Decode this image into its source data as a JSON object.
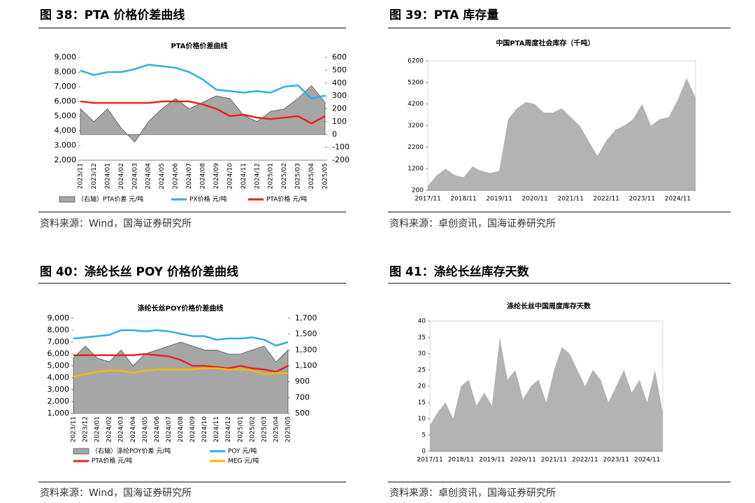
{
  "figures": [
    {
      "heading": "图 38：PTA 价格价差曲线",
      "source": "资料来源：Wind，国海证券研究所"
    },
    {
      "heading": "图 39：PTA 库存量",
      "source": "资料来源：卓创资讯，国海证券研究所"
    },
    {
      "heading": "图 40：涤纶长丝 POY 价格价差曲线",
      "source": "资料来源：Wind，国海证券研究所"
    },
    {
      "heading": "图 41：涤纶长丝库存天数",
      "source": "资料来源：卓创资讯，国海证券研究所"
    }
  ],
  "chart_data": [
    {
      "type": "combo",
      "title": "PTA价格价差曲线",
      "categories": [
        "2023/11",
        "2023/12",
        "2024/01",
        "2024/02",
        "2024/03",
        "2024/04",
        "2024/05",
        "2024/06",
        "2024/07",
        "2024/08",
        "2024/09",
        "2024/10",
        "2024/11",
        "2024/12",
        "2025/01",
        "2025/02",
        "2025/03",
        "2025/04",
        "2025/05"
      ],
      "series": [
        {
          "name": "（右轴）PTA价差  元/吨",
          "type": "area",
          "axis": "y2",
          "color": "#a6a6a6",
          "values": [
            200,
            100,
            200,
            50,
            -60,
            100,
            200,
            280,
            200,
            250,
            300,
            280,
            150,
            100,
            180,
            200,
            280,
            380,
            250
          ]
        },
        {
          "name": "PX价格  元/吨",
          "type": "line",
          "color": "#2eaee6",
          "values": [
            8100,
            7800,
            8000,
            8000,
            8200,
            8500,
            8400,
            8300,
            8000,
            7500,
            6800,
            6700,
            6600,
            6700,
            6600,
            7000,
            7100,
            6200,
            6400
          ]
        },
        {
          "name": "PTA价格  元/吨",
          "type": "line",
          "color": "#e8231f",
          "values": [
            6000,
            5900,
            5900,
            5900,
            5900,
            5900,
            6000,
            6000,
            6000,
            5800,
            5500,
            5000,
            5100,
            4900,
            4800,
            4900,
            5000,
            4500,
            5000
          ]
        }
      ],
      "ylim": [
        2000,
        9000
      ],
      "yticks": [
        {
          "value": 2000,
          "label": "2,000"
        },
        {
          "value": 3000,
          "label": "3,000"
        },
        {
          "value": 4000,
          "label": "4,000"
        },
        {
          "value": 5000,
          "label": "5,000"
        },
        {
          "value": 6000,
          "label": "6,000"
        },
        {
          "value": 7000,
          "label": "7,000"
        },
        {
          "value": 8000,
          "label": "8,000"
        },
        {
          "value": 9000,
          "label": "9,000"
        }
      ],
      "y2lim": [
        -200,
        600
      ],
      "y2ticks": [
        -200,
        -100,
        0,
        100,
        200,
        300,
        400,
        500,
        600
      ]
    },
    {
      "type": "area",
      "title": "中国PTA周度社会库存（千吨）",
      "categories": [
        "2017/11",
        null,
        null,
        null,
        "2018/11",
        null,
        null,
        null,
        "2019/11",
        null,
        null,
        null,
        "2020/11",
        null,
        null,
        null,
        "2021/11",
        null,
        null,
        null,
        "2022/11",
        null,
        null,
        null,
        "2023/11",
        null,
        null,
        null,
        "2024/11",
        null,
        null
      ],
      "series": [
        {
          "name": "PTA社会库存",
          "color": "#b3b3b3",
          "values": [
            400,
            900,
            1200,
            900,
            800,
            1300,
            1100,
            1000,
            1100,
            3500,
            4000,
            4300,
            4200,
            3800,
            3800,
            4000,
            3600,
            3200,
            2500,
            1800,
            2500,
            3000,
            3200,
            3500,
            4200,
            3200,
            3500,
            3600,
            4400,
            5400,
            4500
          ]
        }
      ],
      "ylim": [
        200,
        6200
      ],
      "yticks": [
        200,
        1200,
        2200,
        3200,
        4200,
        5200,
        6200
      ]
    },
    {
      "type": "combo",
      "title": "涤纶长丝POY价格价差曲线",
      "categories": [
        "2023/11",
        "2023/12",
        "2024/01",
        "2024/02",
        "2024/03",
        "2024/04",
        "2024/05",
        "2024/06",
        "2024/07",
        "2024/08",
        "2024/09",
        "2024/10",
        "2024/11",
        "2024/12",
        "2025/01",
        "2025/02",
        "2025/03",
        "2025/04",
        "2025/05"
      ],
      "series": [
        {
          "name": "（右轴）涤纶POY价差  元/吨",
          "type": "area",
          "axis": "y2",
          "color": "#a6a6a6",
          "values": [
            1200,
            1350,
            1200,
            1150,
            1300,
            1100,
            1250,
            1300,
            1350,
            1400,
            1350,
            1300,
            1300,
            1250,
            1250,
            1300,
            1350,
            1150,
            1300
          ]
        },
        {
          "name": "POY  元/吨",
          "type": "line",
          "color": "#2eaee6",
          "values": [
            7300,
            7400,
            7500,
            7600,
            8000,
            8000,
            7900,
            8000,
            7900,
            7700,
            7500,
            7500,
            7200,
            7300,
            7300,
            7400,
            7200,
            6700,
            7000
          ]
        },
        {
          "name": "PTA价格  元/吨",
          "type": "line",
          "color": "#e8231f",
          "values": [
            5900,
            5900,
            5900,
            5900,
            5900,
            5900,
            6000,
            5900,
            5800,
            5500,
            5000,
            5000,
            4900,
            4800,
            5000,
            4800,
            4700,
            4500,
            5000
          ]
        },
        {
          "name": "MEG  元/吨",
          "type": "line",
          "color": "#f5b800",
          "values": [
            4100,
            4300,
            4500,
            4600,
            4600,
            4400,
            4600,
            4700,
            4700,
            4700,
            4700,
            4800,
            4800,
            4700,
            4700,
            4600,
            4300,
            4400,
            4400
          ]
        }
      ],
      "ylim": [
        1000,
        9000
      ],
      "yticks": [
        {
          "value": 1000,
          "label": "1,000"
        },
        {
          "value": 2000,
          "label": "2,000"
        },
        {
          "value": 3000,
          "label": "3,000"
        },
        {
          "value": 4000,
          "label": "4,000"
        },
        {
          "value": 5000,
          "label": "5,000"
        },
        {
          "value": 6000,
          "label": "6,000"
        },
        {
          "value": 7000,
          "label": "7,000"
        },
        {
          "value": 8000,
          "label": "8,000"
        },
        {
          "value": 9000,
          "label": "9,000"
        }
      ],
      "y2lim": [
        500,
        1700
      ],
      "y2ticks": [
        500,
        700,
        900,
        {
          "value": 1100,
          "label": "1,100"
        },
        {
          "value": 1300,
          "label": "1,300"
        },
        {
          "value": 1500,
          "label": "1,500"
        },
        {
          "value": 1700,
          "label": "1,700"
        }
      ]
    },
    {
      "type": "area",
      "title": "涤纶长丝中国周度库存天数",
      "categories": [
        "2017/11",
        null,
        null,
        null,
        "2018/11",
        null,
        null,
        null,
        "2019/11",
        null,
        null,
        null,
        "2020/11",
        null,
        null,
        null,
        "2021/11",
        null,
        null,
        null,
        "2022/11",
        null,
        null,
        null,
        "2023/11",
        null,
        null,
        null,
        "2024/11",
        null,
        null
      ],
      "series": [
        {
          "name": "库存天数",
          "color": "#b3b3b3",
          "values": [
            8,
            12,
            15,
            10,
            20,
            22,
            14,
            18,
            14,
            35,
            22,
            25,
            16,
            20,
            22,
            15,
            25,
            32,
            30,
            25,
            20,
            25,
            22,
            15,
            20,
            25,
            18,
            22,
            15,
            25,
            12
          ]
        }
      ],
      "ylim": [
        0,
        40
      ],
      "yticks": [
        0,
        5,
        10,
        15,
        20,
        25,
        30,
        35,
        40
      ]
    }
  ]
}
